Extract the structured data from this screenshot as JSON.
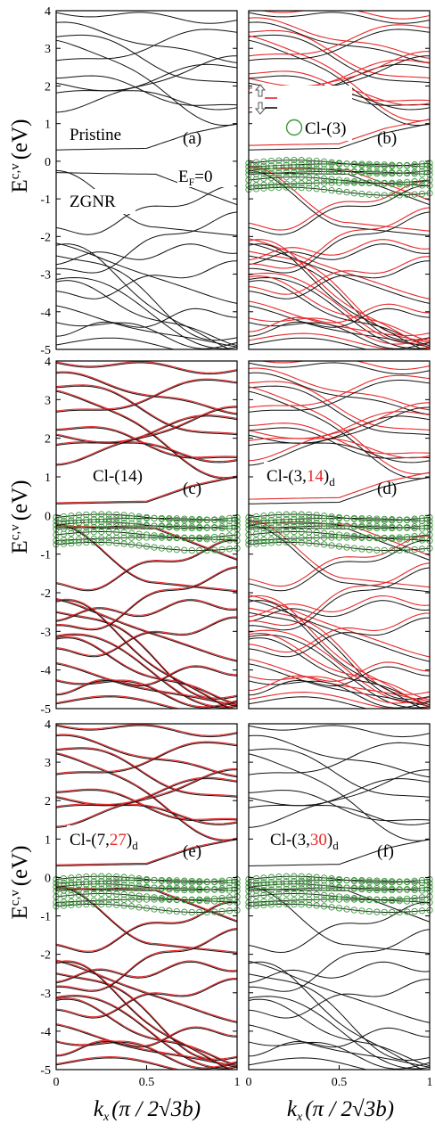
{
  "chart_data": {
    "type": "line",
    "ylabel_main": "E",
    "ylabel_sup": "c,v",
    "ylabel_unit": "(eV)",
    "xlabel_main": "k",
    "xlabel_sub": "x",
    "xlabel_unit": "(π / 2√3b)",
    "xlim": [
      0,
      1
    ],
    "ylim": [
      -5,
      4
    ],
    "x_ticks": [
      "0",
      "0.5",
      "1"
    ],
    "y_ticks": [
      "4",
      "3",
      "2",
      "1",
      "0",
      "-1",
      "-2",
      "-3",
      "-4",
      "-5"
    ],
    "fermi_label": "E",
    "fermi_sub": "F",
    "fermi_value": "=0",
    "spin_colors": {
      "up": "#e8282a",
      "down": "#111111"
    },
    "orbital_marker_color": "#3a9a3a",
    "legend_text": "Cl-(3)",
    "panels": [
      {
        "id": "a",
        "label": "(a)",
        "texts": [
          "Pristine",
          "ZGNR"
        ],
        "spin_split": false,
        "red_lines": false,
        "cl_marks": false
      },
      {
        "id": "b",
        "label": "(b)",
        "title": "Cl-(3)",
        "spin_split": true,
        "red_lines": true,
        "cl_marks": true
      },
      {
        "id": "c",
        "label": "(c)",
        "title_main": "Cl-(14)",
        "spin_split": false,
        "red_lines": true,
        "cl_marks": true
      },
      {
        "id": "d",
        "label": "(d)",
        "title_pre": "Cl-(3,",
        "title_red": "14",
        "title_post": ")",
        "title_sub": "d",
        "spin_split": true,
        "red_lines": true,
        "cl_marks": true
      },
      {
        "id": "e",
        "label": "(e)",
        "title_pre": "Cl-(7,",
        "title_red": "27",
        "title_post": ")",
        "title_sub": "d",
        "spin_split": false,
        "red_lines": true,
        "cl_marks": true
      },
      {
        "id": "f",
        "label": "(f)",
        "title_pre": "Cl-(3,",
        "title_red": "30",
        "title_post": ")",
        "title_sub": "d",
        "spin_split": false,
        "red_lines": false,
        "cl_marks": true
      }
    ]
  }
}
